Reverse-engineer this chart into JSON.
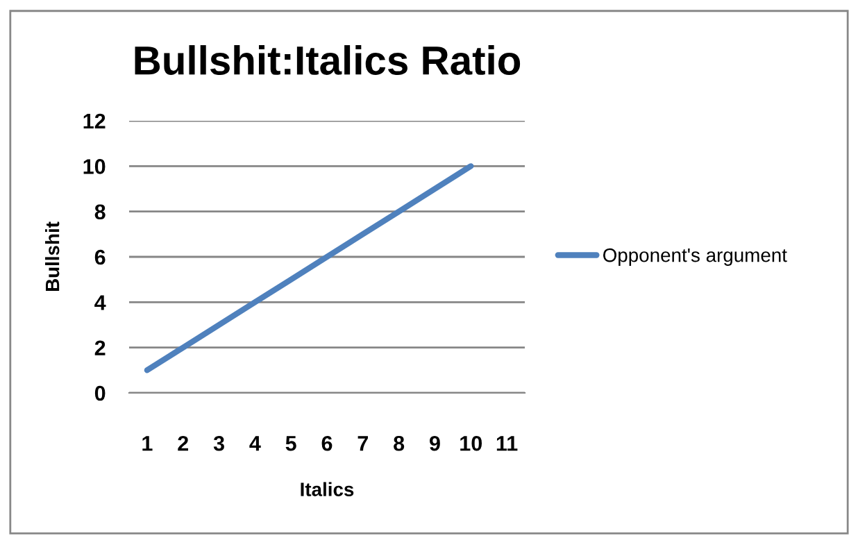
{
  "chart_data": {
    "type": "line",
    "title": "Bullshit:Italics Ratio",
    "xlabel": "Italics",
    "ylabel": "Bullshit",
    "categories": [
      "1",
      "2",
      "3",
      "4",
      "5",
      "6",
      "7",
      "8",
      "9",
      "10",
      "11"
    ],
    "series": [
      {
        "name": "Opponent's argument",
        "color": "#4f81bd",
        "values": [
          1,
          2,
          3,
          4,
          5,
          6,
          7,
          8,
          9,
          10,
          null
        ]
      }
    ],
    "ylim": [
      0,
      12
    ],
    "yticks": [
      0,
      2,
      4,
      6,
      8,
      10,
      12
    ],
    "grid": "y",
    "legend": "right",
    "marker": "none",
    "line_style": "solid"
  }
}
